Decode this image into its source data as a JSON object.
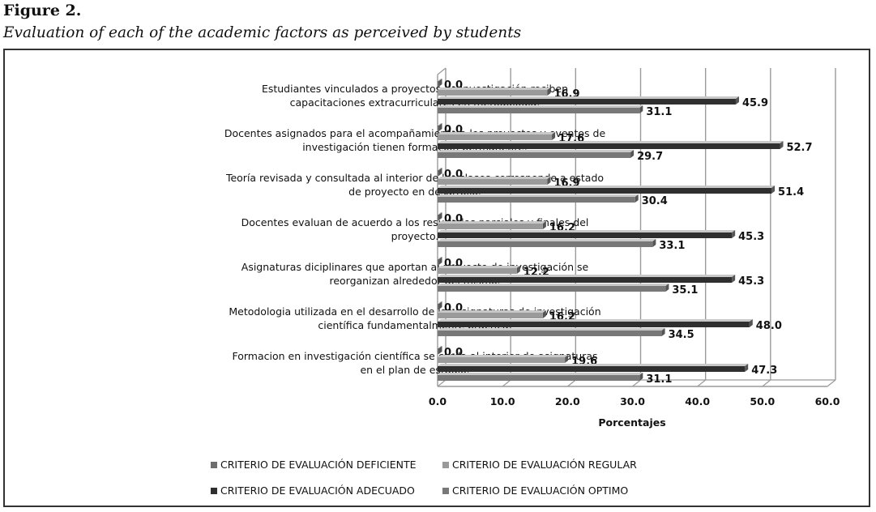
{
  "figure": {
    "label": "Figure 2.",
    "caption": "Evaluation of each of the academic factors as perceived by students"
  },
  "chart_data": {
    "type": "bar",
    "orientation": "horizontal",
    "categories": [
      [
        "Estudiantes vinculados a proyectos de investigación reciben",
        "capacitaciones extracurriculares en metodología."
      ],
      [
        "Docentes asignados para el acompañamiento a los proyectos y eventos de",
        "investigación tienen formación permanente."
      ],
      [
        "Teoría revisada y consultada al interior de las clases corresponde a estado",
        "de proyecto en desarrollo."
      ],
      [
        "Docentes evaluan de acuerdo a los resultados parciales y finales del",
        "proyecto."
      ],
      [
        "Asignaturas diciplinares que aportan al proyecto de investigación se",
        "reorganizan alrededor del mismo."
      ],
      [
        "Metodologia utilizada en el desarrollo de las asignaturas de investigación",
        "científica fundamentalmente practica."
      ],
      [
        "Formacion en investigación científica se curda al interior de asignaturas",
        "en el plan de estudio."
      ]
    ],
    "series": [
      {
        "name": "CRITERIO  DE  EVALUACIÓN DEFICIENTE",
        "values": [
          0.0,
          0.0,
          0.0,
          0.0,
          0.0,
          0.0,
          0.0
        ],
        "color": "#6e6e6e"
      },
      {
        "name": "CRITERIO  DE  EVALUACIÓN REGULAR",
        "values": [
          16.9,
          17.6,
          16.9,
          16.2,
          12.2,
          16.2,
          19.6
        ],
        "color": "#9a9a9a"
      },
      {
        "name": "CRITERIO  DE  EVALUACIÓN ADECUADO",
        "values": [
          45.9,
          52.7,
          51.4,
          45.3,
          45.3,
          48.0,
          47.3
        ],
        "color": "#2f2f2f"
      },
      {
        "name": "CRITERIO  DE  EVALUACIÓN OPTIMO",
        "values": [
          31.1,
          29.7,
          30.4,
          33.1,
          35.1,
          34.5,
          31.1
        ],
        "color": "#787878"
      }
    ],
    "xlabel": "Porcentajes",
    "xlim": [
      0,
      60
    ],
    "xticks": [
      "0.0",
      "10.0",
      "20.0",
      "30.0",
      "40.0",
      "50.0",
      "60.0"
    ],
    "grid": true,
    "legend_position": "bottom",
    "style": "3d"
  }
}
